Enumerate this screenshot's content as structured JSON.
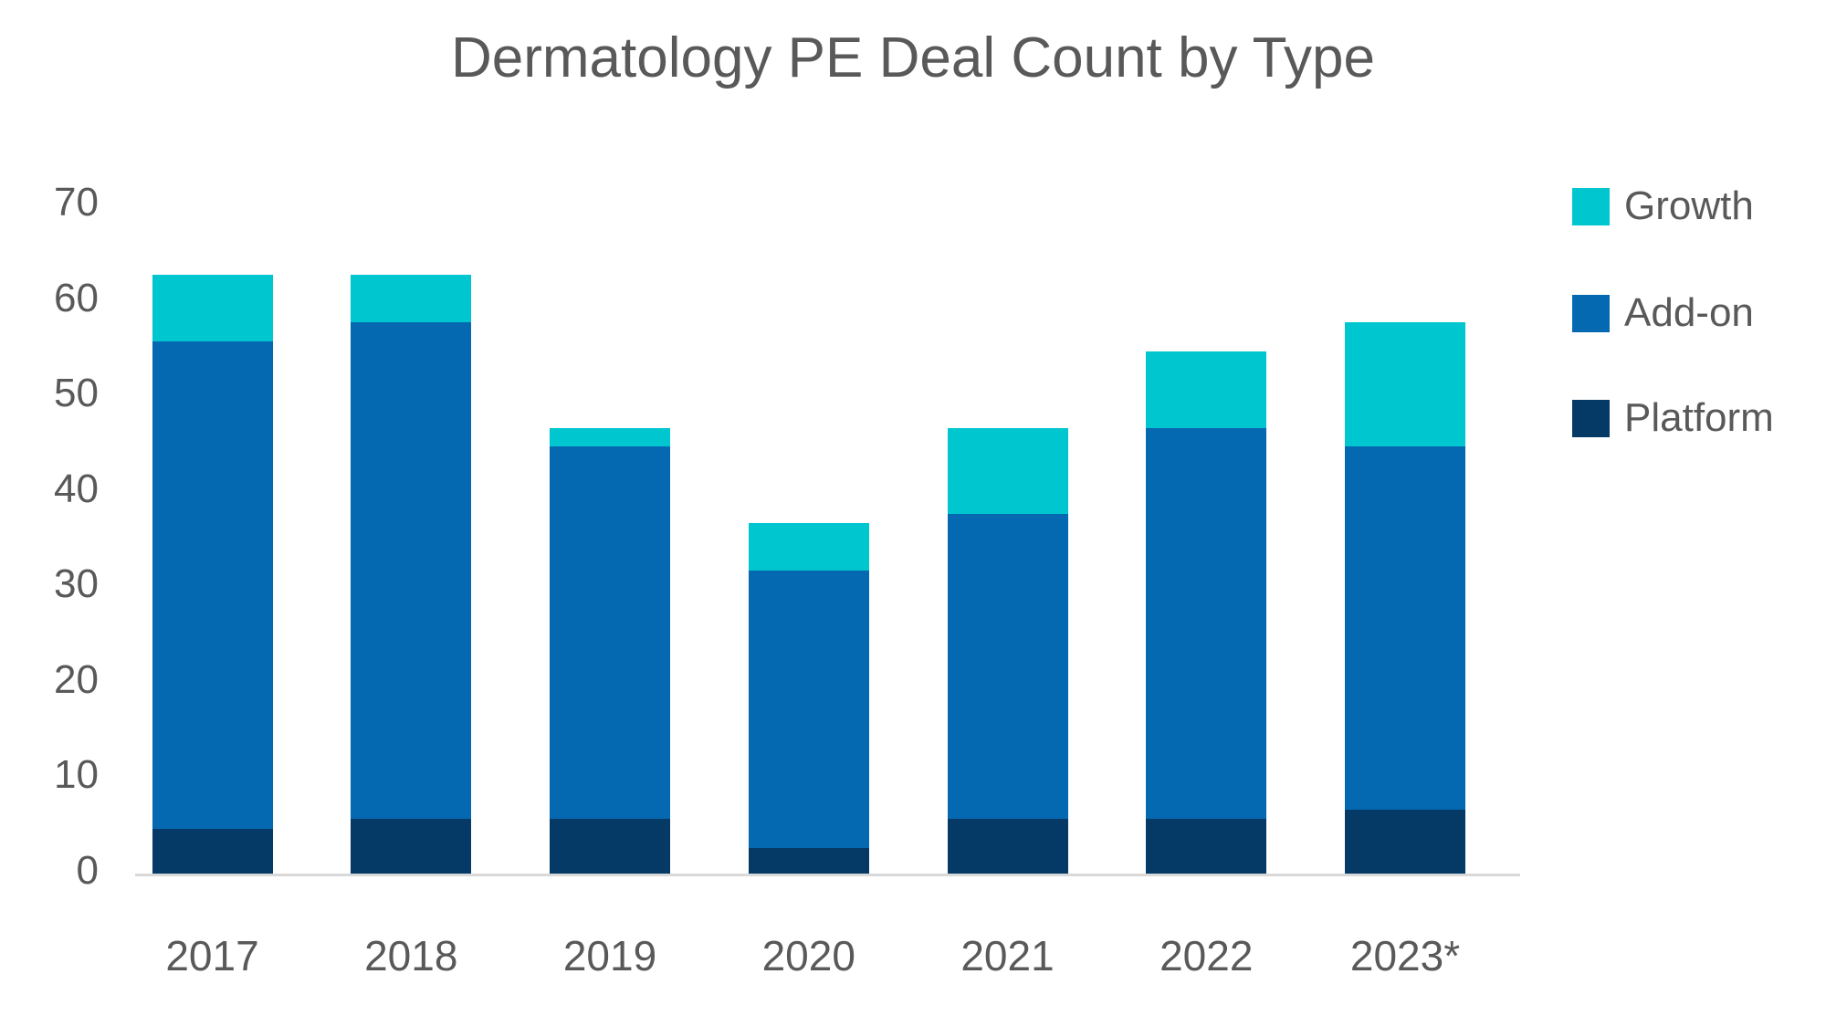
{
  "title": "Dermatology PE Deal Count by Type",
  "colors": {
    "growth": "#00C6D0",
    "addon": "#0569B1",
    "platform": "#063A66",
    "text": "#595959",
    "axis_line": "#D9D9D9",
    "background": "#FFFFFF"
  },
  "legend": {
    "position": "right",
    "items": [
      "Growth",
      "Add-on",
      "Platform"
    ]
  },
  "chart_data": {
    "type": "bar",
    "stacked": true,
    "title": "Dermatology PE Deal Count by Type",
    "categories": [
      "2017",
      "2018",
      "2019",
      "2020",
      "2021",
      "2022",
      "2023*"
    ],
    "series": [
      {
        "name": "Platform",
        "color": "#063A66",
        "values": [
          5,
          6,
          6,
          3,
          6,
          6,
          7
        ]
      },
      {
        "name": "Add-on",
        "color": "#0569B1",
        "values": [
          51,
          52,
          39,
          29,
          32,
          41,
          38
        ]
      },
      {
        "name": "Growth",
        "color": "#00C6D0",
        "values": [
          7,
          5,
          2,
          5,
          9,
          8,
          13
        ]
      }
    ],
    "totals": [
      63,
      63,
      47,
      37,
      47,
      55,
      58
    ],
    "xlabel": "",
    "ylabel": "",
    "ylim": [
      0,
      70
    ],
    "yticks": [
      0,
      10,
      20,
      30,
      40,
      50,
      60,
      70
    ],
    "grid": false,
    "legend_position": "right",
    "legend_order": [
      "Growth",
      "Add-on",
      "Platform"
    ]
  }
}
